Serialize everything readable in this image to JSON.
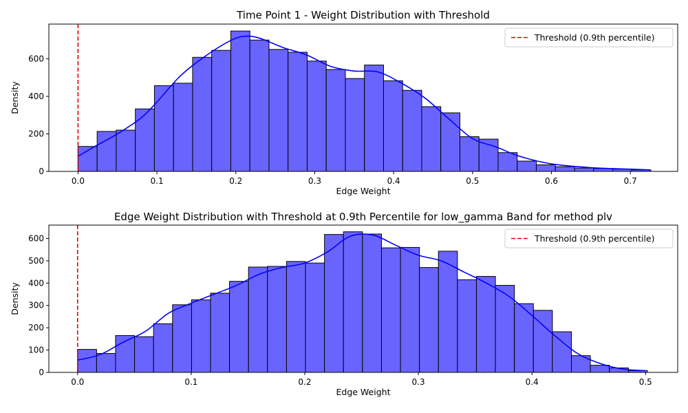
{
  "chart_data": [
    {
      "type": "bar",
      "title": "Time Point 1 - Weight Distribution with Threshold",
      "xlabel": "Edge Weight",
      "ylabel": "Density",
      "xlim": [
        -0.037,
        0.76
      ],
      "ylim": [
        0,
        785
      ],
      "xticks": [
        0.0,
        0.1,
        0.2,
        0.3,
        0.4,
        0.5,
        0.6,
        0.7
      ],
      "xtick_labels": [
        "0.0",
        "0.1",
        "0.2",
        "0.3",
        "0.4",
        "0.5",
        "0.6",
        "0.7"
      ],
      "yticks": [
        0,
        200,
        400,
        600
      ],
      "ytick_labels": [
        "0",
        "200",
        "400",
        "600"
      ],
      "bin_start": 0.0,
      "bin_width": 0.0242,
      "values": [
        133,
        213,
        220,
        333,
        457,
        470,
        608,
        645,
        748,
        700,
        650,
        635,
        588,
        543,
        495,
        567,
        483,
        432,
        345,
        312,
        185,
        172,
        100,
        55,
        35,
        25,
        18,
        15,
        12,
        8
      ],
      "kde": {
        "x": [
          0.0,
          0.02,
          0.05,
          0.08,
          0.1,
          0.13,
          0.16,
          0.19,
          0.21,
          0.23,
          0.26,
          0.29,
          0.32,
          0.35,
          0.38,
          0.41,
          0.44,
          0.47,
          0.5,
          0.53,
          0.56,
          0.6,
          0.65,
          0.7,
          0.725
        ],
        "y": [
          80,
          130,
          200,
          285,
          370,
          510,
          610,
          690,
          720,
          710,
          660,
          620,
          560,
          535,
          530,
          470,
          390,
          280,
          175,
          130,
          80,
          40,
          20,
          12,
          8
        ]
      },
      "threshold": 0.0,
      "legend": {
        "position": "upper right",
        "entries": [
          "Threshold (0.9th percentile)"
        ]
      },
      "colors": {
        "bar_fill": "#6a64ff",
        "bar_edge": "#000000",
        "kde_line": "#0000ff",
        "threshold_line": "#e00000"
      }
    },
    {
      "type": "bar",
      "title": "Edge Weight Distribution with Threshold at 0.9th Percentile for low_gamma Band for method plv",
      "xlabel": "Edge Weight",
      "ylabel": "Density",
      "xlim": [
        -0.0253,
        0.5283
      ],
      "ylim": [
        0,
        660
      ],
      "xticks": [
        0.0,
        0.1,
        0.2,
        0.3,
        0.4,
        0.5
      ],
      "xtick_labels": [
        "0.0",
        "0.1",
        "0.2",
        "0.3",
        "0.4",
        "0.5"
      ],
      "yticks": [
        0,
        100,
        200,
        300,
        400,
        500,
        600
      ],
      "ytick_labels": [
        "0",
        "100",
        "200",
        "300",
        "400",
        "500",
        "600"
      ],
      "bin_start": 0.0,
      "bin_width": 0.01672,
      "values": [
        103,
        85,
        165,
        160,
        218,
        303,
        325,
        355,
        408,
        472,
        475,
        497,
        490,
        618,
        630,
        620,
        558,
        560,
        470,
        543,
        415,
        430,
        390,
        308,
        278,
        182,
        75,
        32,
        20,
        8
      ],
      "kde": {
        "x": [
          0.0,
          0.02,
          0.04,
          0.06,
          0.08,
          0.1,
          0.12,
          0.14,
          0.16,
          0.18,
          0.2,
          0.22,
          0.24,
          0.26,
          0.28,
          0.3,
          0.32,
          0.34,
          0.36,
          0.38,
          0.4,
          0.42,
          0.44,
          0.46,
          0.48,
          0.5
        ],
        "y": [
          55,
          80,
          135,
          185,
          265,
          310,
          350,
          390,
          440,
          470,
          490,
          540,
          610,
          615,
          570,
          525,
          500,
          450,
          400,
          340,
          255,
          165,
          85,
          40,
          15,
          8
        ]
      },
      "threshold": 0.0,
      "legend": {
        "position": "upper right",
        "entries": [
          "Threshold (0.9th percentile)"
        ]
      },
      "colors": {
        "bar_fill": "#6a64ff",
        "bar_edge": "#000000",
        "kde_line": "#0000ff",
        "threshold_line": "#e00000"
      }
    }
  ]
}
